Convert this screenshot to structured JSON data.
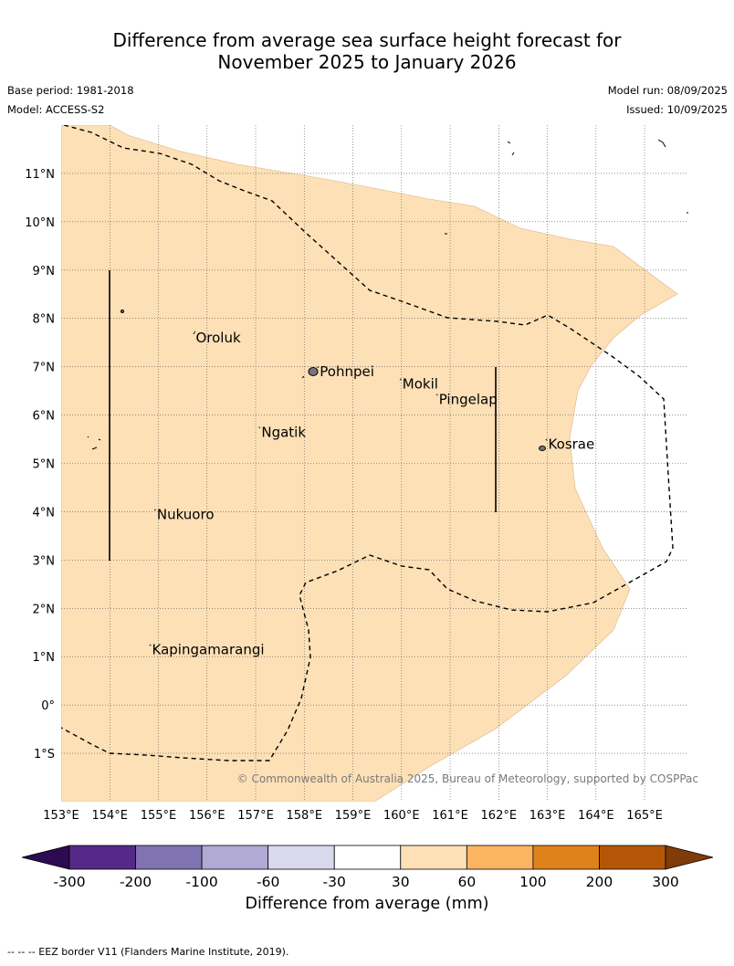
{
  "title_line1": "Difference from average sea surface height forecast for",
  "title_line2": "November 2025 to January 2026",
  "base_period": "Base period: 1981-2018",
  "model": "Model: ACCESS-S2",
  "model_run": "Model run: 08/09/2025",
  "issued": "Issued: 10/09/2025",
  "copyright": "© Commonwealth of Australia 2025, Bureau of Meteorology, supported by COSPPac",
  "footer": "--  --  -- EEZ border V11 (Flanders Marine Institute, 2019).",
  "map": {
    "lon_range": [
      153,
      165.9
    ],
    "lat_range": [
      -2,
      12
    ],
    "lon_ticks": [
      "153°E",
      "154°E",
      "155°E",
      "156°E",
      "157°E",
      "158°E",
      "159°E",
      "160°E",
      "161°E",
      "162°E",
      "163°E",
      "164°E",
      "165°E"
    ],
    "lat_ticks": [
      "11°N",
      "10°N",
      "9°N",
      "8°N",
      "7°N",
      "6°N",
      "5°N",
      "4°N",
      "3°N",
      "2°N",
      "1°N",
      "0°",
      "1°S"
    ],
    "places": [
      {
        "name": "Oroluk",
        "lon": 155.75,
        "lat": 7.5
      },
      {
        "name": "Pohnpei",
        "lon": 158.3,
        "lat": 6.8
      },
      {
        "name": "Mokil",
        "lon": 160.0,
        "lat": 6.55
      },
      {
        "name": "Pingelap",
        "lon": 160.75,
        "lat": 6.23
      },
      {
        "name": "Ngatik",
        "lon": 157.1,
        "lat": 5.55
      },
      {
        "name": "Kosrae",
        "lon": 163.0,
        "lat": 5.3
      },
      {
        "name": "Nukuoro",
        "lon": 154.95,
        "lat": 3.85
      },
      {
        "name": "Kapingamarangi",
        "lon": 154.85,
        "lat": 1.05
      }
    ],
    "anomaly_field_color": "#fde0b6",
    "anomaly_field_category": "30 to 60 mm"
  },
  "colorbar": {
    "label": "Difference from average (mm)",
    "ticks": [
      "-300",
      "-200",
      "-100",
      "-60",
      "-30",
      "30",
      "60",
      "100",
      "200",
      "300"
    ],
    "colors": [
      "#552988",
      "#7f74b1",
      "#b1aad4",
      "#d9d8ec",
      "#ffffff",
      "#fde0b6",
      "#fbb461",
      "#e0821c",
      "#b35707"
    ],
    "under_color": "#2d0b50",
    "over_color": "#7f3b08"
  }
}
